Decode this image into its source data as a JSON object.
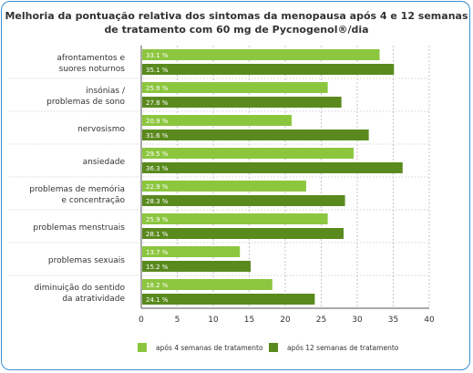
{
  "chart_data": {
    "type": "bar",
    "orientation": "horizontal",
    "title_lines": [
      "Melhoria da pontuação relativa dos sintomas da menopausa após 4 e 12 semanas",
      "de tratamento com 60 mg de Pycnogenol®/dia"
    ],
    "categories": [
      [
        "afrontamentos e",
        "suores noturnos"
      ],
      [
        "insónias /",
        "problemas de sono"
      ],
      [
        "nervosismo"
      ],
      [
        "ansiedade"
      ],
      [
        "problemas de memória",
        "e concentração"
      ],
      [
        "problemas menstruais"
      ],
      [
        "problemas sexuais"
      ],
      [
        "diminuição do sentido",
        "da atratividade"
      ]
    ],
    "series": [
      {
        "name": "após 4 semanas de tratamento",
        "color": "#8cc63f",
        "values": [
          33.1,
          25.9,
          20.9,
          29.5,
          22.9,
          25.9,
          13.7,
          18.2
        ],
        "labels": [
          "33.1 %",
          "25.9 %",
          "20.9 %",
          "29.5 %",
          "22.9 %",
          "25.9 %",
          "13.7 %",
          "18.2 %"
        ]
      },
      {
        "name": "após 12 semanas de tratamento",
        "color": "#5a8a1e",
        "values": [
          35.1,
          27.8,
          31.6,
          36.3,
          28.3,
          28.1,
          15.2,
          24.1
        ],
        "labels": [
          "35.1 %",
          "27.8 %",
          "31.6 %",
          "36.3 %",
          "28.3 %",
          "28.1 %",
          "15.2 %",
          "24.1 %"
        ]
      }
    ],
    "xlim": [
      0,
      40
    ],
    "xticks": [
      0,
      5,
      10,
      15,
      20,
      25,
      30,
      35,
      40
    ],
    "grid": "vertical",
    "legend_position": "bottom"
  }
}
